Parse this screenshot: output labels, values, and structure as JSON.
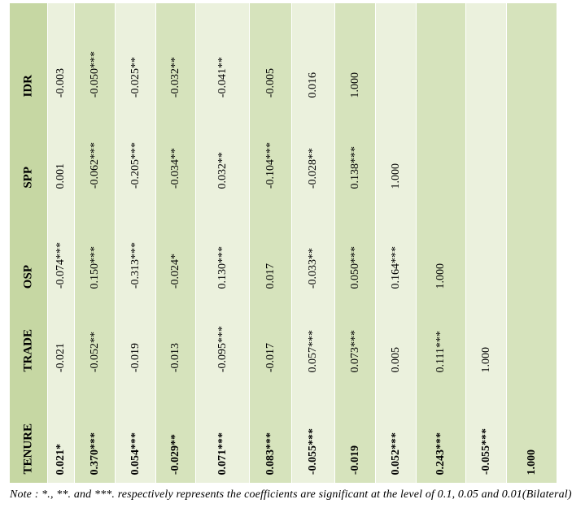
{
  "colors": {
    "header": "#c6d7a3",
    "light": "#ebf1dd",
    "dark": "#d6e3bc"
  },
  "rows": [
    {
      "header": "IDR",
      "bold": false,
      "values": [
        "-0.003",
        "-0.050***",
        "-0.025**",
        "-0.032**",
        "-0.041**",
        "-0.005",
        "0.016",
        "1.000",
        "",
        "",
        "",
        ""
      ]
    },
    {
      "header": "SPP",
      "bold": false,
      "values": [
        "0.001",
        "-0.062***",
        "-0.205***",
        "-0.034**",
        "0.032**",
        "-0.104***",
        "-0.028**",
        "0.138***",
        "1.000",
        "",
        "",
        ""
      ]
    },
    {
      "header": "OSP",
      "bold": false,
      "values": [
        "-0.074***",
        "0.150***",
        "-0.313***",
        "-0.024*",
        "0.130***",
        "0.017",
        "-0.033**",
        "0.050***",
        "0.164***",
        "1.000",
        "",
        ""
      ]
    },
    {
      "header": "TRADE",
      "bold": false,
      "values": [
        "-0.021",
        "-0.052**",
        "-0.019",
        "-0.013",
        "-0.095***",
        "-0.017",
        "0.057***",
        "0.073***",
        "0.005",
        "0.111***",
        "1.000",
        ""
      ]
    },
    {
      "header": "TENURE",
      "bold": true,
      "values": [
        "0.021*",
        "0.370***",
        "0.054***",
        "-0.029**",
        "0.071***",
        "0.083***",
        "-0.055***",
        "-0.019",
        "0.052***",
        "0.243***",
        "-0.055***",
        "1.000"
      ]
    }
  ],
  "note": "Note : *., **. and ***. respectively represents the coefficients are significant at the level of 0.1, 0.05 and 0.01(Bilateral)"
}
